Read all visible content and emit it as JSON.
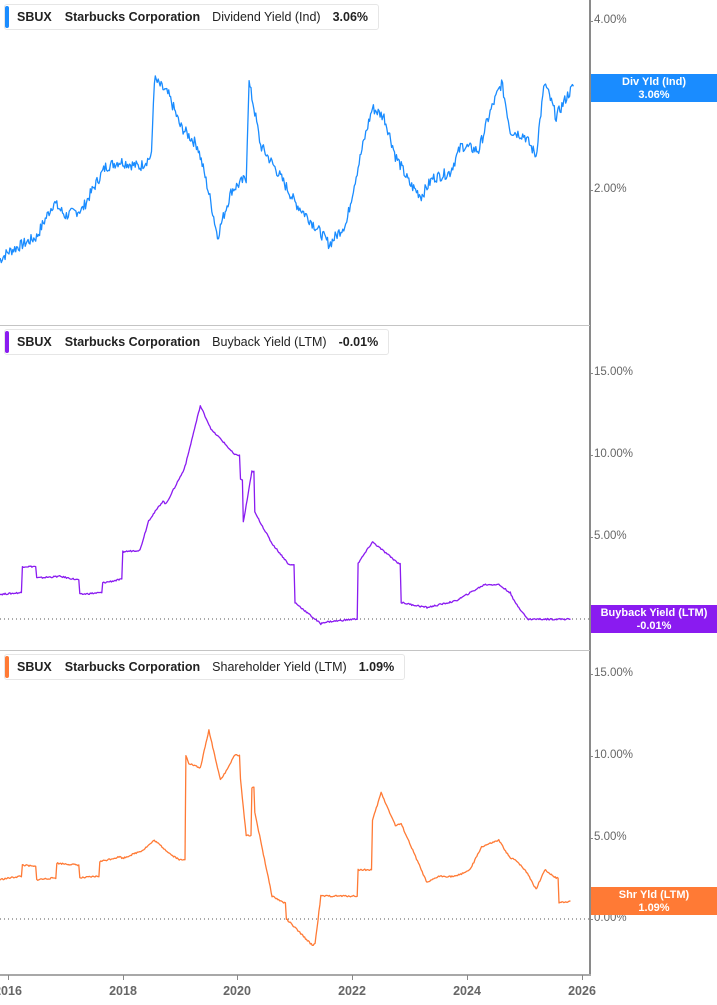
{
  "chart_data": [
    {
      "type": "line",
      "title": "SBUX Starbucks Corporation Dividend Yield (Ind)",
      "ticker": "SBUX",
      "company": "Starbucks Corporation",
      "metric": "Dividend Yield (Ind)",
      "current_value": "3.06%",
      "color": "#1a8cff",
      "yscale": "log",
      "yticks": [
        "2.00%",
        "3.00%",
        "4.00%"
      ],
      "ylim": [
        1.45,
        4.2
      ],
      "x": [
        2015.85,
        2016.0,
        2016.5,
        2016.8,
        2017.0,
        2017.3,
        2017.7,
        2017.95,
        2018.3,
        2018.5,
        2018.55,
        2018.8,
        2019.0,
        2019.3,
        2019.65,
        2019.9,
        2020.15,
        2020.2,
        2020.4,
        2020.7,
        2021.0,
        2021.3,
        2021.6,
        2021.9,
        2022.1,
        2022.35,
        2022.55,
        2022.75,
        2023.0,
        2023.2,
        2023.4,
        2023.7,
        2023.9,
        2024.2,
        2024.4,
        2024.6,
        2024.75,
        2025.0,
        2025.2,
        2025.35,
        2025.55,
        2025.75,
        2025.85
      ],
      "values": [
        1.5,
        1.55,
        1.65,
        1.9,
        1.8,
        1.85,
        2.2,
        2.25,
        2.2,
        2.3,
        3.15,
        2.95,
        2.6,
        2.4,
        1.65,
        2.0,
        2.1,
        3.1,
        2.4,
        2.15,
        1.9,
        1.75,
        1.6,
        1.75,
        2.2,
        2.8,
        2.7,
        2.3,
        2.05,
        1.95,
        2.1,
        2.15,
        2.4,
        2.35,
        2.75,
        3.1,
        2.55,
        2.5,
        2.3,
        3.1,
        2.7,
        2.95,
        3.06
      ]
    },
    {
      "type": "line",
      "title": "SBUX Starbucks Corporation Buyback Yield (LTM)",
      "ticker": "SBUX",
      "company": "Starbucks Corporation",
      "metric": "Buyback Yield (LTM)",
      "current_value": "-0.01%",
      "color": "#8a1bf0",
      "yticks": [
        "0.00%",
        "5.00%",
        "10.00%",
        "15.00%"
      ],
      "ylim": [
        -1.5,
        17.5
      ],
      "x": [
        2015.85,
        2016.2,
        2016.25,
        2016.45,
        2016.5,
        2016.9,
        2017.2,
        2017.25,
        2017.6,
        2017.65,
        2017.95,
        2018.0,
        2018.3,
        2018.45,
        2018.7,
        2018.75,
        2019.05,
        2019.1,
        2019.35,
        2019.55,
        2019.7,
        2019.95,
        2020.05,
        2020.1,
        2020.25,
        2020.3,
        2020.6,
        2020.9,
        2021.0,
        2021.45,
        2021.5,
        2022.05,
        2022.1,
        2022.35,
        2022.8,
        2022.85,
        2023.3,
        2023.8,
        2024.05,
        2024.3,
        2024.55,
        2024.75,
        2024.8,
        2025.05,
        2025.8
      ],
      "values": [
        1.5,
        1.6,
        3.2,
        3.2,
        2.5,
        2.6,
        2.4,
        1.5,
        1.6,
        2.2,
        2.4,
        4.1,
        4.2,
        6.0,
        7.2,
        7.0,
        9.0,
        9.5,
        13.0,
        11.5,
        11.0,
        10.0,
        8.5,
        5.9,
        9.0,
        6.5,
        4.6,
        3.3,
        1.0,
        -0.3,
        -0.2,
        0.0,
        3.4,
        4.7,
        3.4,
        1.0,
        0.7,
        1.1,
        1.6,
        2.1,
        2.1,
        1.6,
        1.2,
        -0.01,
        -0.01
      ]
    },
    {
      "type": "line",
      "title": "SBUX Starbucks Corporation Shareholder Yield (LTM)",
      "ticker": "SBUX",
      "company": "Starbucks Corporation",
      "metric": "Shareholder Yield (LTM)",
      "current_value": "1.09%",
      "color": "#ff7a35",
      "yticks": [
        "0.00%",
        "5.00%",
        "10.00%",
        "15.00%"
      ],
      "ylim": [
        -3,
        16.5
      ],
      "x": [
        2015.85,
        2016.2,
        2016.25,
        2016.45,
        2016.5,
        2016.8,
        2016.85,
        2017.2,
        2017.25,
        2017.55,
        2017.6,
        2017.95,
        2018.0,
        2018.35,
        2018.55,
        2018.85,
        2019.0,
        2019.1,
        2019.15,
        2019.35,
        2019.5,
        2019.7,
        2019.8,
        2019.95,
        2020.05,
        2020.15,
        2020.25,
        2020.3,
        2020.6,
        2020.8,
        2020.85,
        2021.3,
        2021.35,
        2021.45,
        2022.0,
        2022.1,
        2022.3,
        2022.35,
        2022.5,
        2022.75,
        2022.85,
        2023.3,
        2023.5,
        2023.8,
        2024.05,
        2024.25,
        2024.55,
        2024.75,
        2024.85,
        2025.05,
        2025.2,
        2025.35,
        2025.55,
        2025.6,
        2025.8
      ],
      "values": [
        2.4,
        2.6,
        3.3,
        3.2,
        2.4,
        2.5,
        3.4,
        3.3,
        2.5,
        2.6,
        3.5,
        3.8,
        3.7,
        4.2,
        4.8,
        3.9,
        3.6,
        10.0,
        9.5,
        9.2,
        11.5,
        8.5,
        9.0,
        10.0,
        8.5,
        5.1,
        8.0,
        6.5,
        1.4,
        1.0,
        0.0,
        -1.6,
        -1.5,
        1.4,
        1.4,
        3.0,
        3.0,
        6.0,
        7.7,
        5.7,
        5.8,
        2.2,
        2.6,
        2.6,
        3.0,
        4.4,
        4.8,
        3.7,
        3.6,
        2.8,
        1.8,
        3.0,
        2.5,
        1.0,
        1.09
      ]
    }
  ],
  "panels": [
    {
      "legend": {
        "ticker": "SBUX",
        "company": "Starbucks Corporation",
        "metric": "Dividend Yield (Ind)",
        "value": "3.06%"
      },
      "flag": {
        "label": "Div Yld (Ind)",
        "value": "3.06%"
      },
      "yticks": [
        {
          "label": "4.00%"
        },
        {
          "label": "3.00%"
        },
        {
          "label": "2.00%"
        }
      ],
      "colors": {
        "line": "#1a8cff",
        "flag_bg": "#1a8cff",
        "legend_bar": "#1a8cff"
      }
    },
    {
      "legend": {
        "ticker": "SBUX",
        "company": "Starbucks Corporation",
        "metric": "Buyback Yield (LTM)",
        "value": "-0.01%"
      },
      "flag": {
        "label": "Buyback Yield (LTM)",
        "value": "-0.01%"
      },
      "yticks": [
        {
          "label": "15.00%"
        },
        {
          "label": "10.00%"
        },
        {
          "label": "5.00%"
        },
        {
          "label": "0.00%"
        }
      ],
      "colors": {
        "line": "#8a1bf0",
        "flag_bg": "#8a1bf0",
        "legend_bar": "#8a1bf0"
      }
    },
    {
      "legend": {
        "ticker": "SBUX",
        "company": "Starbucks Corporation",
        "metric": "Shareholder Yield (LTM)",
        "value": "1.09%"
      },
      "flag": {
        "label": "Shr Yld (LTM)",
        "value": "1.09%"
      },
      "yticks": [
        {
          "label": "15.00%"
        },
        {
          "label": "10.00%"
        },
        {
          "label": "5.00%"
        },
        {
          "label": "0.00%"
        }
      ],
      "colors": {
        "line": "#ff7a35",
        "flag_bg": "#ff7a35",
        "legend_bar": "#ff7a35"
      }
    }
  ],
  "xaxis": {
    "ticks": [
      {
        "label": "2016"
      },
      {
        "label": "2018"
      },
      {
        "label": "2020"
      },
      {
        "label": "2022"
      },
      {
        "label": "2024"
      },
      {
        "label": "2026"
      }
    ]
  }
}
